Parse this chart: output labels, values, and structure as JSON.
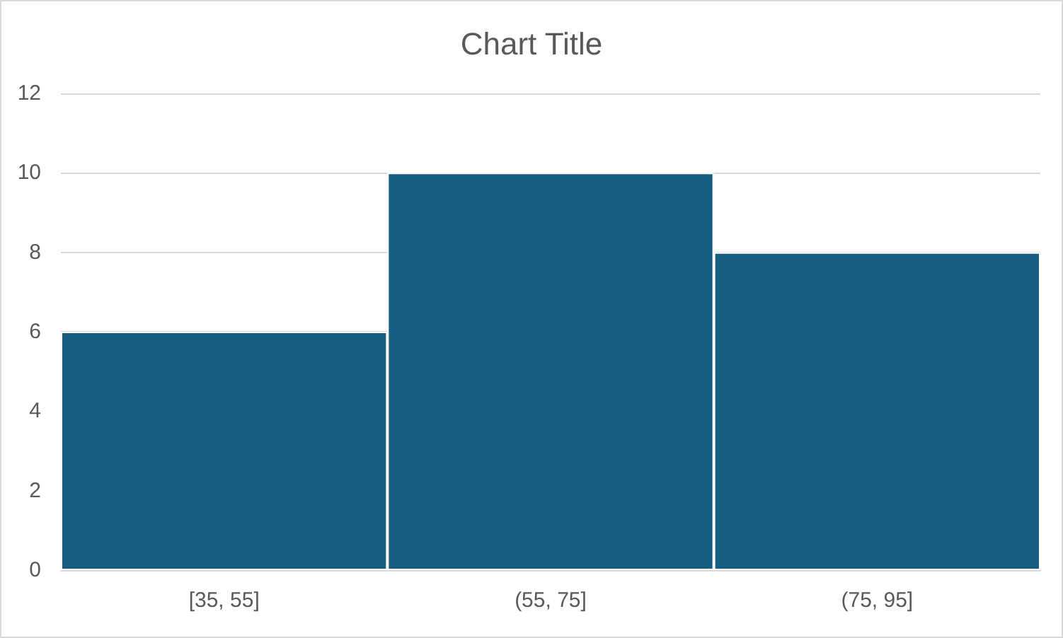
{
  "chart_data": {
    "type": "bar",
    "title": "Chart Title",
    "categories": [
      "[35, 55]",
      "(55, 75]",
      "(75, 95]"
    ],
    "values": [
      6,
      10,
      8
    ],
    "color": "#175f82",
    "ylim": [
      0,
      12
    ],
    "yticks": [
      0,
      2,
      4,
      6,
      8,
      10,
      12
    ],
    "grid": "y"
  }
}
